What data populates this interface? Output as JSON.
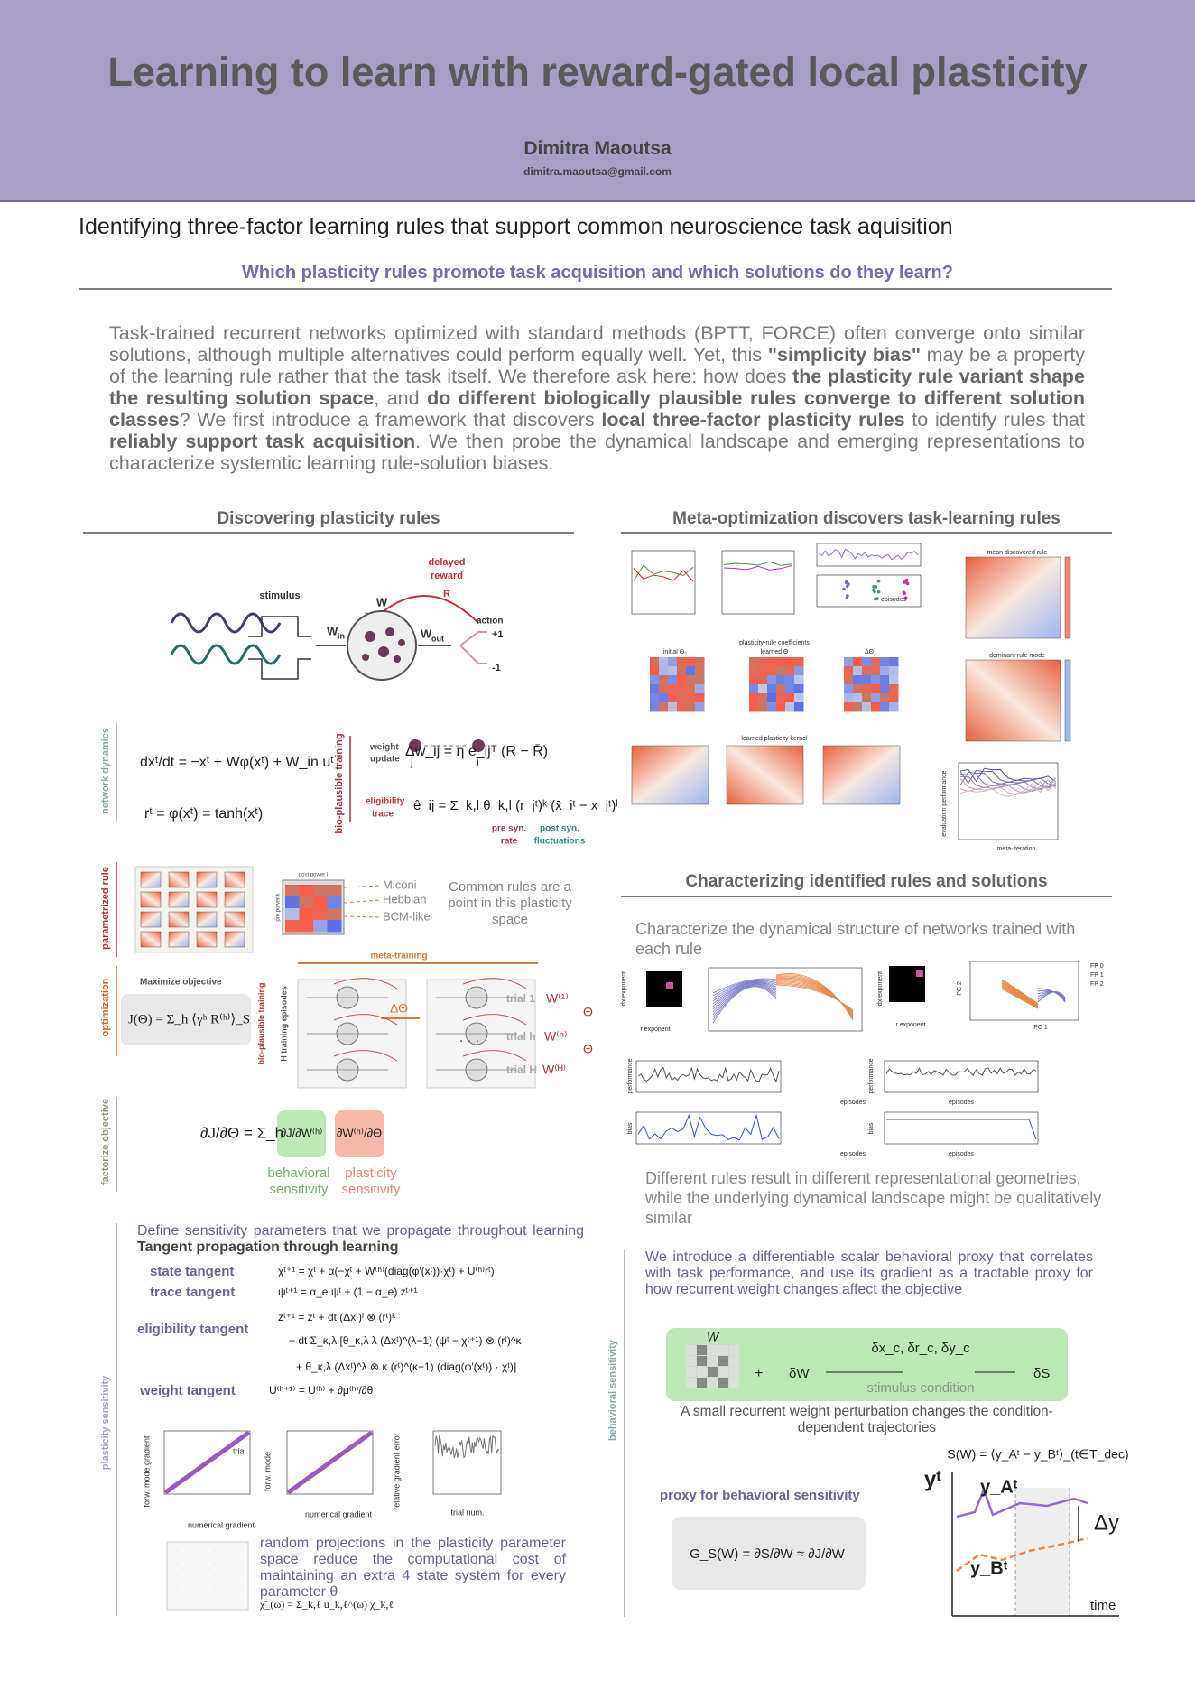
{
  "header": {
    "title": "Learning to learn with reward-gated local plasticity",
    "author": "Dimitra Maoutsa",
    "email": "dimitra.maoutsa@gmail.com"
  },
  "subtitle": "Identifying three-factor learning rules that support common neuroscience task aquisition",
  "question": "Which plasticity rules promote task acquisition and which solutions do they learn?",
  "intro": [
    {
      "text": "Task-trained recurrent networks optimized with standard methods (BPTT, FORCE) often converge onto similar solutions, although multiple alternatives could perform equally well. Yet, this ",
      "bold": false
    },
    {
      "text": "\"simplicity bias\"",
      "bold": true
    },
    {
      "text": " may be a property of the learning rule rather that the task itself. We therefore ask here: how does ",
      "bold": false
    },
    {
      "text": "the plasticity rule variant shape the resulting solution space",
      "bold": true
    },
    {
      "text": ", and ",
      "bold": false
    },
    {
      "text": "do different biologically plausible rules converge to different solution classes",
      "bold": true
    },
    {
      "text": "? We first introduce a framework that discovers ",
      "bold": false
    },
    {
      "text": "local three-factor plasticity rules",
      "bold": true
    },
    {
      "text": " to identify rules that ",
      "bold": false
    },
    {
      "text": "reliably support task acquisition",
      "bold": true
    },
    {
      "text": ". We then probe the dynamical landscape and emerging representations to characterize systemtic learning rule-solution biases.",
      "bold": false
    }
  ],
  "left": {
    "heading": "Discovering plasticity rules",
    "network": {
      "delayed": "delayed",
      "reward": "reward",
      "R": "R",
      "stimulus": "stimulus",
      "W": "W",
      "W_in": "W",
      "in": "in",
      "W_out": "W",
      "out": "out",
      "action": "action",
      "plus": "+1",
      "minus": "-1"
    },
    "labels": {
      "network_dynamics": "network dynamics",
      "bio_training": "bio-plausible training",
      "parametrized_rule": "parametrized rule",
      "optimization": "optimization",
      "bio_training_2": "bio-plausible training",
      "factorize": "factorize objective",
      "plasticity_sensitivity": "plasticity sensitivity",
      "h_episodes": "H training episodes"
    },
    "equations": {
      "dynamics": "dxᵗ/dt = −xᵗ + Wφ(xᵗ) + W_in uᵗ",
      "rate": "rᵗ = φ(xᵗ) = tanh(xᵗ)",
      "weight_update_1": "weight",
      "weight_update_2": "update",
      "update": "Δw_ij = η e_ijᵀ (R − R̄)",
      "j": "j",
      "i": "i",
      "elig_1": "eligibility",
      "elig_2": "trace",
      "trace": "ê_ij = Σ_k,l θ_k,l (r_jᵗ)ᵏ (x̄_iᵗ − x_jᵗ)ˡ",
      "pre_1": "pre syn.",
      "pre_2": "rate",
      "post_1": "post syn.",
      "post_2": "fluctuations"
    },
    "rules": {
      "miconi": "Miconi",
      "hebbian": "Hebbian",
      "bcm": "BCM-like",
      "common": "Common rules are a point in this plasticity space",
      "post_power": "post power l",
      "pre_power": "pre power k"
    },
    "optim": {
      "maximize": "Maximize objective",
      "objective": "J(Θ) = Σ_h ⟨γʰ R⁽ʰ⁾⟩_S",
      "meta": "meta-training",
      "delta": "ΔΘ",
      "trial1": "trial 1",
      "trialh": "trial h",
      "trialH": "trial H",
      "W1": "W⁽¹⁾",
      "Wh": "W⁽ʰ⁾",
      "WH": "W⁽ᴴ⁾",
      "theta": "Θ",
      "dots": ". . ."
    },
    "factor": {
      "lhs": "∂J/∂Θ = Σ_h",
      "b": "∂J/∂W⁽ʰ⁾",
      "p": "∂W⁽ʰ⁾/∂Θ",
      "b1": "behavioral",
      "b2": "sensitivity",
      "p1": "plasticity",
      "p2": "sensitivity"
    },
    "tangent": {
      "intro": "Define sensitivity parameters that we propagate throughout learning",
      "intro_bold": "Tangent propagation through learning",
      "state": "state tangent",
      "trace": "trace tangent",
      "elig": "eligibility tangent",
      "weight": "weight tangent",
      "eq_state": "χᵗ⁺¹ = χᵗ + α(−χᵗ + W⁽ʰ⁾(diag(φ′(xᵗ))·χᵗ) + U⁽ʰ⁾rᵗ)",
      "eq_trace": "ψᵗ⁺¹ = α_e ψᵗ + (1 − α_e) zᵗ⁺¹",
      "eq_elig_1": "zᵗ⁺¹ = zᵗ + dt (Δxᵗ)ˡ ⊗ (rᵗ)ᵏ",
      "eq_elig_2": "+ dt Σ_κ,λ [θ_κ,λ λ (Δxᵗ)^(λ−1) (ψᵗ − χᵗ⁺¹) ⊗ (rᵗ)^κ",
      "eq_elig_3": "+ θ_κ,λ (Δxᵗ)^λ ⊗ κ (rᵗ)^(κ−1) (diag(φ′(xᵗ)) · χᵗ)]",
      "eq_weight": "U⁽ʰ⁺¹⁾ = U⁽ʰ⁾ + ∂μ⁽ʰ⁾/∂θ",
      "plot1_y": "forw. mode gradient",
      "plot1_x": "numerical gradient",
      "plot2_y": "forw. mode",
      "plot2_x": "numerical gradient",
      "plot3_y": "relative gradient error",
      "plot3_x": "trial num.",
      "trial": "trial",
      "random": "random projections in the plasticity parameter space reduce the computational cost of maintaining an extra 4 state system for every parameter θ",
      "random_eq": "χ̃_(ω) = Σ_k,ℓ u_k,ℓ^(ω) χ_k,ℓ"
    }
  },
  "right": {
    "heading": "Meta-optimization discovers task-learning rules",
    "fig": {
      "mean_rule": "mean discovered rule",
      "dominant": "dominant rule mode",
      "coeffs": "plasticity-rule coefficients",
      "initial": "initial Θ₀",
      "learned": "learned Θ",
      "delta": "ΔΘ",
      "kernel": "learned plasticity kernel",
      "meta_iter": "meta-iteration",
      "episodes": "episodes",
      "eval": "evaluation performance"
    },
    "heading2": "Characterizing identified rules and solutions",
    "characterize": "Characterize the dynamical structure of networks trained with each rule",
    "fig2": {
      "performance": "performance",
      "bias": "bias",
      "episodes": "episodes",
      "pc1": "PC 1",
      "pc2": "PC 2",
      "fp0": "FP 0",
      "fp1": "FP 1",
      "fp2": "FP 2",
      "r_exp": "r exponent",
      "dx_exp": "dx exponent"
    },
    "different": "Different rules result in different representational geometries, while the underlying dynamical landscape might be qualitatively similar",
    "behavioral_label": "behavioral sensitivity",
    "introduce": "We introduce a differentiable scalar behavioral proxy that correlates with task performance, and use its gradient as a tractable proxy for how recurrent weight changes affect the objective",
    "box": {
      "W": "W",
      "plus": "+",
      "dW": "δW",
      "deltas": "δx_c, δr_c, δy_c",
      "stim": "stimulus condition",
      "dS": "δS"
    },
    "perturb": "A small recurrent weight perturbation changes the condition-dependent trajectories",
    "proxy": "proxy for behavioral sensitivity",
    "proxy_eq": "G_S(W) = ∂S/∂W ≈ ∂J/∂W",
    "sw": "S(W) = ⟨y_Aᵗ − y_Bᵗ⟩_(t∈T_dec)",
    "yt": "yᵗ",
    "yA": "y_Aᵗ",
    "yB": "y_Bᵗ",
    "dy": "Δy",
    "time": "time"
  }
}
